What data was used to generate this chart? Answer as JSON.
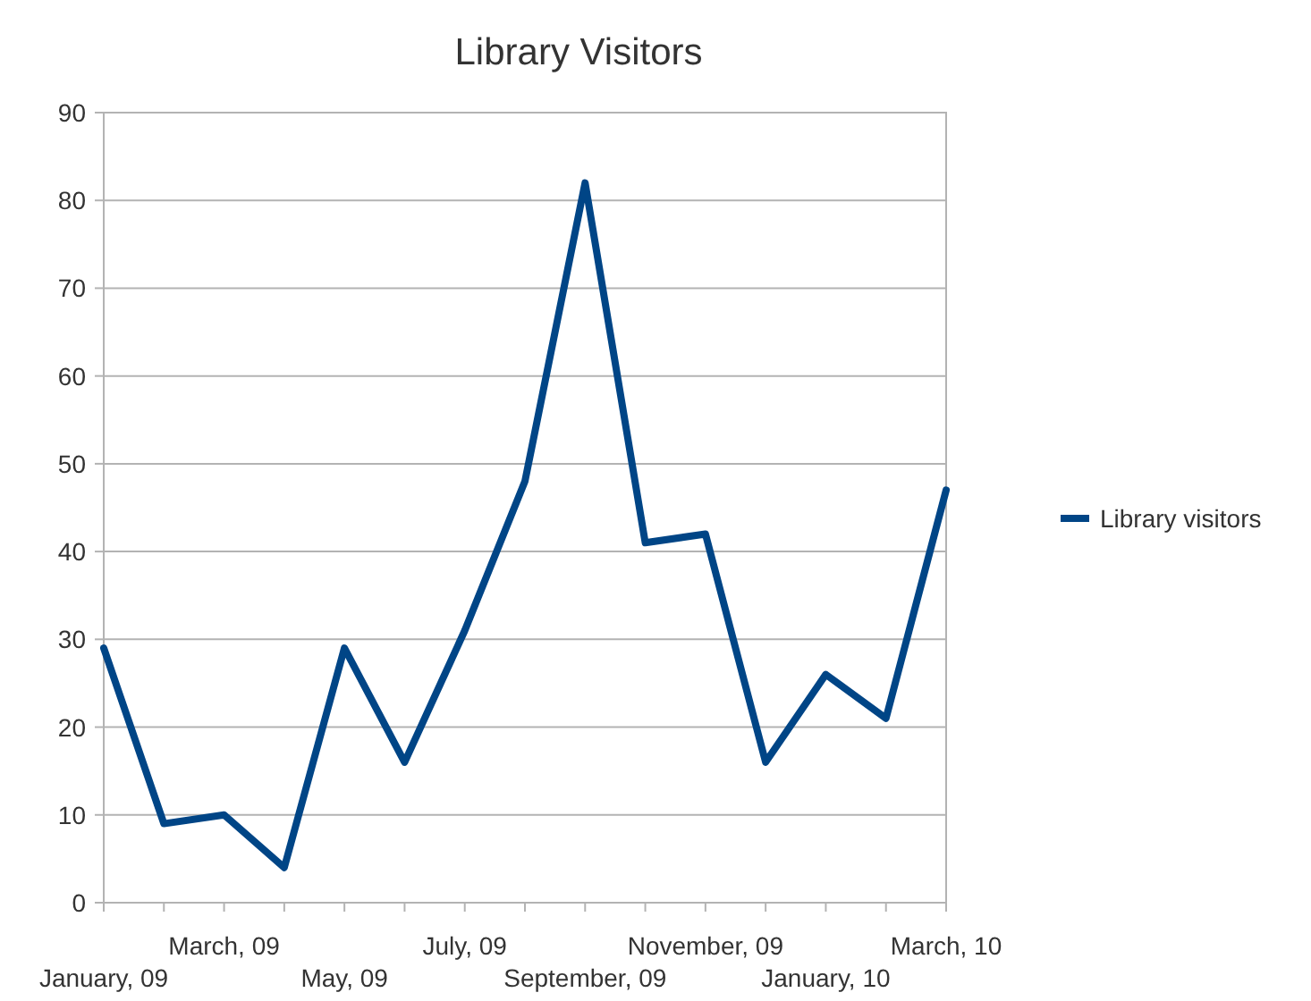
{
  "chart_data": {
    "type": "line",
    "title": "Library Visitors",
    "categories": [
      "January, 09",
      null,
      "March, 09",
      null,
      "May, 09",
      null,
      "July, 09",
      null,
      "September, 09",
      null,
      "November, 09",
      null,
      "January, 10",
      null,
      "March, 10"
    ],
    "series": [
      {
        "name": "Library visitors",
        "color": "#004586",
        "values": [
          29,
          9,
          10,
          4,
          29,
          16,
          31,
          48,
          82,
          41,
          42,
          16,
          26,
          21,
          47
        ]
      }
    ],
    "ylim": [
      0,
      90
    ],
    "yticks": [
      0,
      10,
      20,
      30,
      40,
      50,
      60,
      70,
      80,
      90
    ],
    "grid": "y",
    "legend": "right",
    "marker": "none",
    "line_style": "solid"
  }
}
